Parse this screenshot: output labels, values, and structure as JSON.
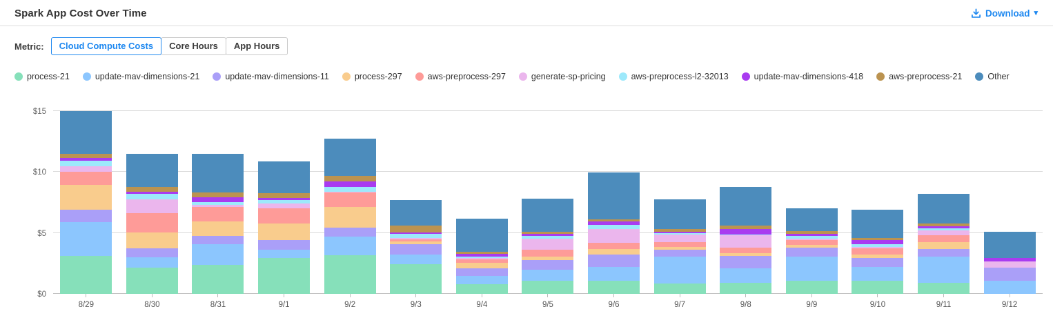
{
  "header": {
    "title": "Spark App Cost Over Time",
    "download_label": "Download",
    "accent_color": "#1e88f0"
  },
  "metric": {
    "label": "Metric:",
    "options": [
      {
        "label": "Cloud Compute Costs",
        "selected": true
      },
      {
        "label": "Core Hours",
        "selected": false
      },
      {
        "label": "App Hours",
        "selected": false
      }
    ]
  },
  "chart_data": {
    "type": "bar",
    "subtype": "stacked",
    "title": "Spark App Cost Over Time",
    "xlabel": "",
    "ylabel": "",
    "ylim": [
      0,
      15
    ],
    "y_ticks": [
      {
        "value": 0,
        "label": "$0"
      },
      {
        "value": 5,
        "label": "$5"
      },
      {
        "value": 10,
        "label": "$10"
      },
      {
        "value": 15,
        "label": "$15"
      }
    ],
    "grid": true,
    "legend_position": "top",
    "categories": [
      "8/29",
      "8/30",
      "8/31",
      "9/1",
      "9/2",
      "9/3",
      "9/4",
      "9/5",
      "9/6",
      "9/7",
      "9/8",
      "9/9",
      "9/10",
      "9/11",
      "9/12"
    ],
    "series": [
      {
        "name": "process-21",
        "color": "#86e0ba",
        "values": [
          3.1,
          2.15,
          2.4,
          2.95,
          3.15,
          2.45,
          0.8,
          1.1,
          1.05,
          0.85,
          0.9,
          1.05,
          1.05,
          0.9,
          0
        ]
      },
      {
        "name": "update-mav-dimensions-21",
        "color": "#8cc6fe",
        "values": [
          2.8,
          0.85,
          1.65,
          0.65,
          1.55,
          0.75,
          0.65,
          0.9,
          1.15,
          2.2,
          1.2,
          2.0,
          1.15,
          2.15,
          1.1
        ]
      },
      {
        "name": "update-mav-dimensions-11",
        "color": "#aa9ff8",
        "values": [
          1.0,
          0.75,
          0.7,
          0.8,
          0.75,
          0.9,
          0.65,
          0.75,
          1.0,
          0.55,
          1.0,
          0.75,
          0.75,
          0.65,
          1.05
        ]
      },
      {
        "name": "process-297",
        "color": "#f9cc8d",
        "values": [
          2.05,
          1.3,
          1.2,
          1.35,
          1.7,
          0.2,
          0.45,
          0.3,
          0.5,
          0.25,
          0.25,
          0.2,
          0.3,
          0.55,
          0
        ]
      },
      {
        "name": "aws-preprocess-297",
        "color": "#fe9b98",
        "values": [
          1.05,
          1.6,
          1.2,
          1.3,
          1.2,
          0.2,
          0.3,
          0.55,
          0.5,
          0.4,
          0.45,
          0.4,
          0.5,
          0.55,
          0
        ]
      },
      {
        "name": "generate-sp-pricing",
        "color": "#ebb6ed",
        "values": [
          0.5,
          1.1,
          0.15,
          0.35,
          0.05,
          0.1,
          0.1,
          0.95,
          1.15,
          0.6,
          1.0,
          0.15,
          0.1,
          0.4,
          0.5
        ]
      },
      {
        "name": "aws-preprocess-l2-32013",
        "color": "#9de9fb",
        "values": [
          0.45,
          0.45,
          0.25,
          0.3,
          0.4,
          0.3,
          0.1,
          0.2,
          0.3,
          0.15,
          0.1,
          0.2,
          0.2,
          0.2,
          0
        ]
      },
      {
        "name": "update-mav-dimensions-418",
        "color": "#a93bf0",
        "values": [
          0.2,
          0.2,
          0.4,
          0.2,
          0.45,
          0.15,
          0.25,
          0.15,
          0.3,
          0.1,
          0.45,
          0.15,
          0.35,
          0.15,
          0.3
        ]
      },
      {
        "name": "aws-preprocess-21",
        "color": "#bb9350",
        "values": [
          0.35,
          0.4,
          0.4,
          0.35,
          0.45,
          0.55,
          0.15,
          0.2,
          0.15,
          0.2,
          0.25,
          0.25,
          0.2,
          0.25,
          0
        ]
      },
      {
        "name": "Other",
        "color": "#4c8cbc",
        "values": [
          3.5,
          2.7,
          3.15,
          2.65,
          3.05,
          2.1,
          2.7,
          2.7,
          3.85,
          2.45,
          3.2,
          1.9,
          2.3,
          2.4,
          2.15
        ]
      }
    ]
  }
}
